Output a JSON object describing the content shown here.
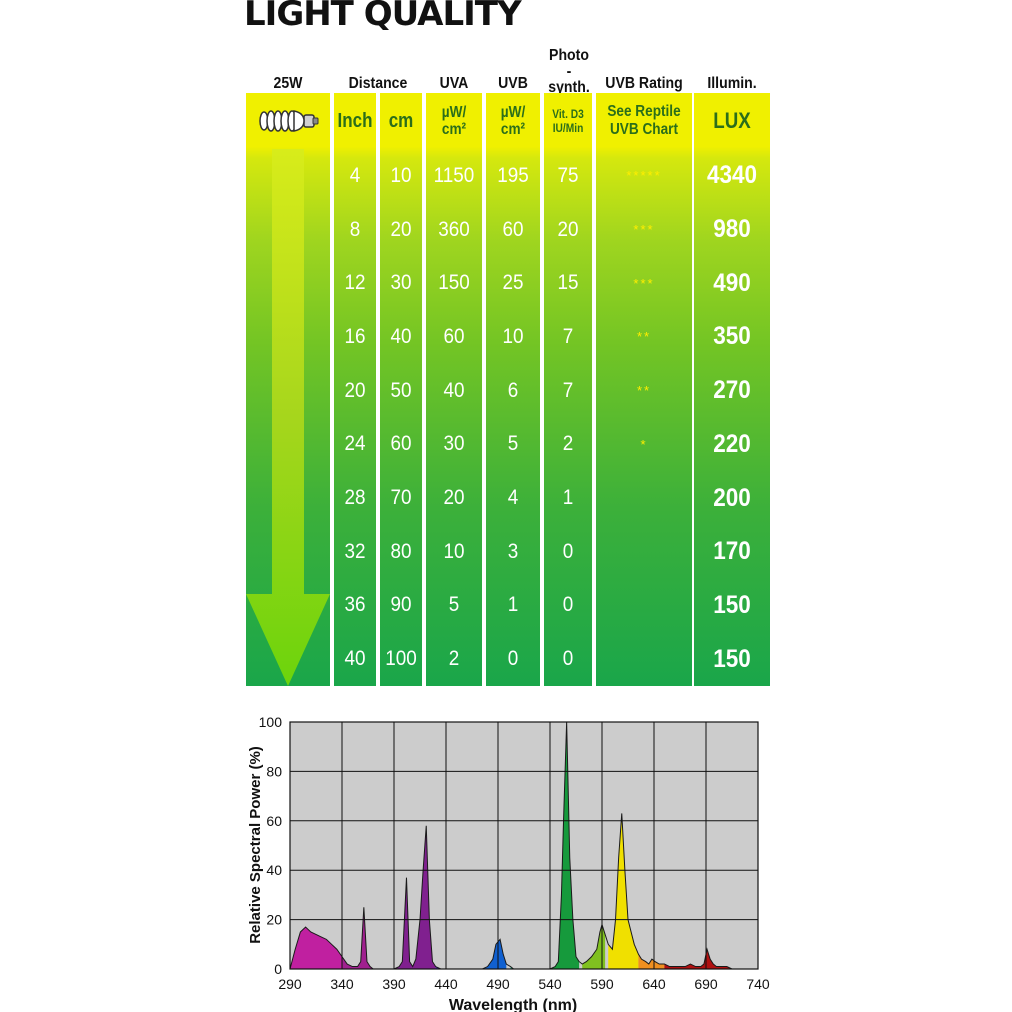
{
  "title": "LIGHT QUALITY",
  "headers": {
    "watt": "25W",
    "distance": "Distance",
    "uva": "UVA",
    "uvb": "UVB",
    "photo_line1": "Photo",
    "photo_line2": "-synth.",
    "rating": "UVB Rating",
    "illum": "Illumin."
  },
  "units": {
    "inch": "Inch",
    "cm": "cm",
    "uva_1": "µW/",
    "uva_2": "cm²",
    "uvb_1": "µW/",
    "uvb_2": "cm²",
    "vit_1": "Vit. D3",
    "vit_2": "IU/Min",
    "rating_1": "See Reptile",
    "rating_2": "UVB Chart",
    "lux": "LUX"
  },
  "icons": {
    "bulb": "spiral-bulb-icon",
    "arrow": "down-arrow-icon"
  },
  "colors": {
    "yellow": "#f0f000",
    "green_top": "#9fd51f",
    "green_bottom": "#1aa64a",
    "star": "#ffee00"
  },
  "rows": [
    {
      "inch": "4",
      "cm": "10",
      "uva": "1150",
      "uvb": "195",
      "vit": "75",
      "stars": "*****",
      "lux": "4340"
    },
    {
      "inch": "8",
      "cm": "20",
      "uva": "360",
      "uvb": "60",
      "vit": "20",
      "stars": "***",
      "lux": "980"
    },
    {
      "inch": "12",
      "cm": "30",
      "uva": "150",
      "uvb": "25",
      "vit": "15",
      "stars": "***",
      "lux": "490"
    },
    {
      "inch": "16",
      "cm": "40",
      "uva": "60",
      "uvb": "10",
      "vit": "7",
      "stars": "**",
      "lux": "350"
    },
    {
      "inch": "20",
      "cm": "50",
      "uva": "40",
      "uvb": "6",
      "vit": "7",
      "stars": "**",
      "lux": "270"
    },
    {
      "inch": "24",
      "cm": "60",
      "uva": "30",
      "uvb": "5",
      "vit": "2",
      "stars": "*",
      "lux": "220"
    },
    {
      "inch": "28",
      "cm": "70",
      "uva": "20",
      "uvb": "4",
      "vit": "1",
      "stars": "",
      "lux": "200"
    },
    {
      "inch": "32",
      "cm": "80",
      "uva": "10",
      "uvb": "3",
      "vit": "0",
      "stars": "",
      "lux": "170"
    },
    {
      "inch": "36",
      "cm": "90",
      "uva": "5",
      "uvb": "1",
      "vit": "0",
      "stars": "",
      "lux": "150"
    },
    {
      "inch": "40",
      "cm": "100",
      "uva": "2",
      "uvb": "0",
      "vit": "0",
      "stars": "",
      "lux": "150"
    }
  ],
  "chart_data": {
    "type": "area",
    "title": "",
    "xlabel": "Wavelength (nm)",
    "ylabel": "Relative Spectral Power (%)",
    "xlim": [
      290,
      740
    ],
    "ylim": [
      0,
      100
    ],
    "xticks": [
      290,
      340,
      390,
      440,
      490,
      540,
      590,
      640,
      690,
      740
    ],
    "yticks": [
      0,
      20,
      40,
      60,
      80,
      100
    ],
    "grid": true,
    "background": "#cccccc",
    "x": [
      290,
      295,
      300,
      305,
      310,
      315,
      320,
      325,
      330,
      335,
      340,
      345,
      350,
      355,
      358,
      361,
      364,
      367,
      370,
      375,
      380,
      385,
      390,
      395,
      398,
      402,
      405,
      408,
      411,
      415,
      418,
      421,
      424,
      427,
      430,
      435,
      440,
      445,
      450,
      455,
      460,
      465,
      470,
      475,
      480,
      485,
      488,
      492,
      495,
      498,
      502,
      505,
      510,
      515,
      520,
      525,
      530,
      535,
      540,
      545,
      548,
      551,
      553,
      556,
      559,
      562,
      565,
      568,
      571,
      575,
      580,
      585,
      588,
      590,
      593,
      596,
      600,
      603,
      606,
      609,
      612,
      615,
      618,
      621,
      625,
      628,
      632,
      635,
      638,
      641,
      645,
      650,
      655,
      660,
      665,
      670,
      675,
      680,
      685,
      688,
      691,
      694,
      697,
      700,
      705,
      710,
      715,
      720,
      725,
      730,
      735,
      740
    ],
    "y": [
      0,
      8,
      15,
      17,
      15,
      14,
      13,
      12,
      10,
      8,
      5,
      2,
      1,
      1,
      3,
      25,
      3,
      1,
      0,
      0,
      0,
      0,
      0,
      1,
      3,
      37,
      3,
      1,
      4,
      20,
      40,
      58,
      20,
      3,
      1,
      0,
      0,
      0,
      0,
      0,
      0,
      0,
      0,
      0,
      1,
      4,
      10,
      12,
      6,
      2,
      1,
      0,
      0,
      0,
      0,
      0,
      0,
      0,
      0,
      1,
      3,
      30,
      60,
      100,
      45,
      20,
      5,
      3,
      2,
      3,
      5,
      8,
      15,
      18,
      14,
      10,
      8,
      20,
      45,
      63,
      40,
      20,
      15,
      10,
      6,
      4,
      3,
      2,
      4,
      3,
      2,
      2,
      1,
      1,
      1,
      1,
      2,
      1,
      1,
      2,
      8,
      4,
      2,
      1,
      1,
      1,
      0,
      0,
      0,
      0,
      0,
      0
    ],
    "spectrum_colors": [
      {
        "from": 290,
        "to": 340,
        "color": "#c020a0"
      },
      {
        "from": 340,
        "to": 380,
        "color": "#a0208f"
      },
      {
        "from": 380,
        "to": 430,
        "color": "#80208f"
      },
      {
        "from": 430,
        "to": 470,
        "color": "#4020a0"
      },
      {
        "from": 470,
        "to": 500,
        "color": "#1060d0"
      },
      {
        "from": 500,
        "to": 530,
        "color": "#20a080"
      },
      {
        "from": 530,
        "to": 570,
        "color": "#169a3c"
      },
      {
        "from": 570,
        "to": 595,
        "color": "#80c020"
      },
      {
        "from": 595,
        "to": 625,
        "color": "#f0e000"
      },
      {
        "from": 625,
        "to": 650,
        "color": "#f09020"
      },
      {
        "from": 650,
        "to": 740,
        "color": "#b01010"
      }
    ]
  }
}
